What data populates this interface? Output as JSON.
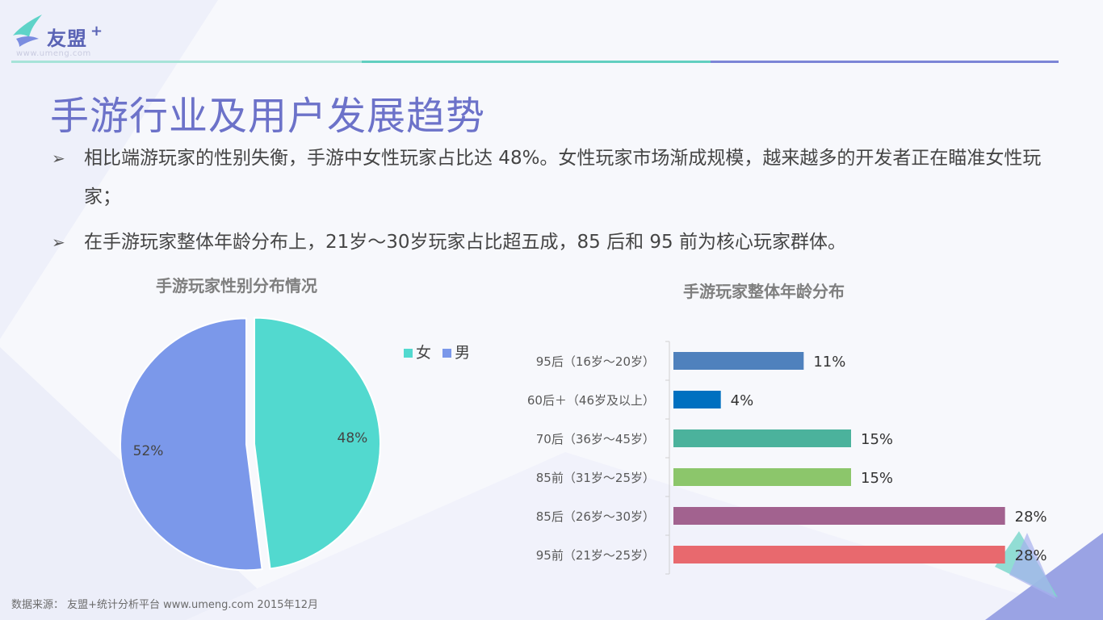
{
  "logo": {
    "name": "友盟",
    "plus": "+",
    "url": "www.umeng.com"
  },
  "title": "手游行业及用户发展趋势",
  "bullets": [
    "相比端游玩家的性别失衡，手游中女性玩家占比达 48%。女性玩家市场渐成规模，越来越多的开发者正在瞄准女性玩家；",
    "在手游玩家整体年龄分布上，21岁～30岁玩家占比超五成，85 后和 95 前为核心玩家群体。"
  ],
  "source": "数据来源： 友盟+统计分析平台 www.umeng.com 2015年12月",
  "chart_data": [
    {
      "type": "pie",
      "title": "手游玩家性别分布情况",
      "legend_position": "right",
      "slices": [
        {
          "label": "女",
          "value": 48,
          "display": "48%",
          "color": "#52d9cf"
        },
        {
          "label": "男",
          "value": 52,
          "display": "52%",
          "color": "#7b98ea"
        }
      ]
    },
    {
      "type": "bar",
      "orientation": "horizontal",
      "title": "手游玩家整体年龄分布",
      "xlim": [
        0,
        30
      ],
      "categories": [
        "95后（16岁～20岁）",
        "60后＋（46岁及以上）",
        "70后（36岁～45岁）",
        "85前（31岁～25岁）",
        "85后（26岁～30岁）",
        "95前（21岁～25岁）"
      ],
      "values": [
        11,
        4,
        15,
        15,
        28,
        28
      ],
      "labels": [
        "11%",
        "4%",
        "15%",
        "15%",
        "28%",
        "28%"
      ],
      "colors": [
        "#4f81bd",
        "#0070c0",
        "#4bb29c",
        "#8cc66b",
        "#a2628f",
        "#e8696e"
      ]
    }
  ]
}
